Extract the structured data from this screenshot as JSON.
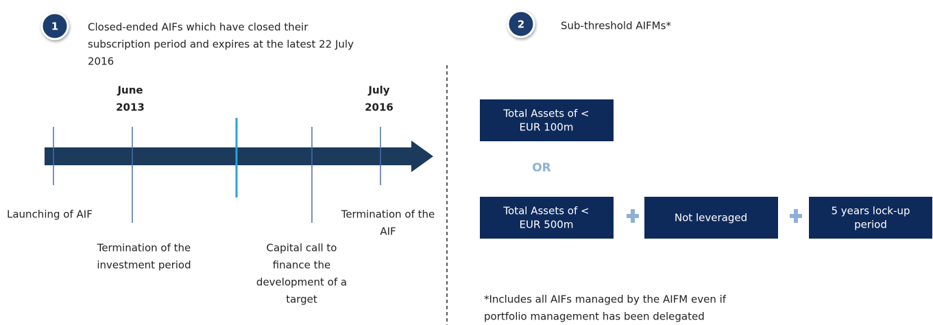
{
  "left": {
    "number": "1",
    "title_lines": [
      "Closed-ended AIFs which have closed their",
      "subscription period and expires at the latest 22 July",
      "2016"
    ],
    "dates": [
      {
        "lines": [
          "June",
          "2013"
        ]
      },
      {
        "lines": [
          "July",
          "2016"
        ]
      }
    ],
    "events": [
      {
        "lines": [
          "Launching of AIF"
        ]
      },
      {
        "lines": [
          "Termination of the",
          "investment period"
        ]
      },
      {
        "lines": [
          "Capital call to",
          "finance the",
          "development of a",
          "target"
        ]
      },
      {
        "lines": [
          "Termination of the",
          "AIF"
        ]
      }
    ]
  },
  "right": {
    "number": "2",
    "title": "Sub-threshold AIFMs*",
    "box_top": [
      "Total Assets of <",
      "EUR 100m"
    ],
    "or": "OR",
    "boxes": [
      [
        "Total Assets of <",
        "EUR 500m"
      ],
      [
        "Not leveraged"
      ],
      [
        "5 years lock-up",
        "period"
      ]
    ],
    "footnote_lines": [
      "*Includes all AIFs managed by the AIFM even if",
      "portfolio management has been delegated"
    ]
  }
}
